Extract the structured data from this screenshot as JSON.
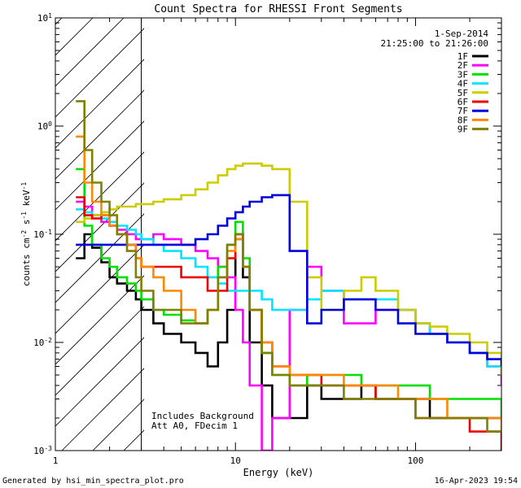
{
  "chart_data": {
    "type": "line",
    "title": "Count Spectra for RHESSI Front Segments",
    "xlabel": "Energy (keV)",
    "ylabel": "counts cm-2 s-1 keV-1",
    "x_scale": "log",
    "y_scale": "log",
    "xlim": [
      1,
      300
    ],
    "ylim": [
      0.001,
      10
    ],
    "x_ticks": [
      {
        "value": 1,
        "label": "1"
      },
      {
        "value": 10,
        "label": "10"
      },
      {
        "value": 100,
        "label": "100"
      }
    ],
    "y_ticks": [
      {
        "value": 10,
        "base": "10",
        "exp": "1"
      },
      {
        "value": 1,
        "base": "10",
        "exp": "0"
      },
      {
        "value": 0.1,
        "base": "10",
        "exp": "-1"
      },
      {
        "value": 0.01,
        "base": "10",
        "exp": "-2"
      },
      {
        "value": 0.001,
        "base": "10",
        "exp": "-3"
      }
    ],
    "date": "1-Sep-2014",
    "time_range": "21:25:00 to 21:26:00",
    "annotation_lines": [
      "Includes Background",
      "Att A0, FDecim 1"
    ],
    "hatched_region_max_kev": 3,
    "series": [
      {
        "name": "1F",
        "color": "#000000",
        "x": [
          1.3,
          1.45,
          1.6,
          1.8,
          2.0,
          2.2,
          2.5,
          2.8,
          3.0,
          3.5,
          4.0,
          5.0,
          6.0,
          7.0,
          8.0,
          9.0,
          10,
          11,
          12,
          14,
          16,
          20,
          25,
          30,
          40,
          50,
          60,
          80,
          100,
          120,
          150,
          200,
          250,
          300
        ],
        "y": [
          0.06,
          0.1,
          0.075,
          0.055,
          0.04,
          0.035,
          0.03,
          0.025,
          0.02,
          0.015,
          0.012,
          0.01,
          0.008,
          0.006,
          0.01,
          0.02,
          0.1,
          0.04,
          0.01,
          0.004,
          0.002,
          0.002,
          0.004,
          0.003,
          0.003,
          0.004,
          0.003,
          0.003,
          0.003,
          0.002,
          0.002,
          0.002,
          0.002,
          0.002
        ]
      },
      {
        "name": "2F",
        "color": "#ff00ff",
        "x": [
          1.3,
          1.45,
          1.6,
          1.8,
          2.0,
          2.2,
          2.5,
          2.8,
          3.0,
          3.5,
          4.0,
          5.0,
          6.0,
          7.0,
          8.0,
          9.0,
          10,
          11,
          12,
          14,
          16,
          20,
          25,
          30,
          40,
          50,
          60,
          80,
          100,
          120,
          150,
          200,
          250,
          300
        ],
        "y": [
          0.2,
          0.18,
          0.15,
          0.13,
          0.12,
          0.11,
          0.1,
          0.09,
          0.09,
          0.1,
          0.09,
          0.08,
          0.07,
          0.06,
          0.05,
          0.04,
          0.02,
          0.01,
          0.004,
          0.001,
          0.002,
          0.02,
          0.05,
          0.03,
          0.015,
          0.015,
          0.02,
          0.02,
          0.015,
          0.012,
          0.01,
          0.008,
          0.006,
          0.004
        ]
      },
      {
        "name": "3F",
        "color": "#00e000",
        "x": [
          1.3,
          1.45,
          1.6,
          1.8,
          2.0,
          2.2,
          2.5,
          2.8,
          3.0,
          3.5,
          4.0,
          5.0,
          6.0,
          7.0,
          8.0,
          9.0,
          10,
          11,
          12,
          14,
          16,
          20,
          25,
          30,
          40,
          50,
          60,
          80,
          100,
          120,
          150,
          200,
          250,
          300
        ],
        "y": [
          0.4,
          0.12,
          0.08,
          0.06,
          0.05,
          0.04,
          0.035,
          0.03,
          0.025,
          0.02,
          0.018,
          0.016,
          0.015,
          0.02,
          0.05,
          0.08,
          0.13,
          0.06,
          0.02,
          0.008,
          0.005,
          0.004,
          0.005,
          0.005,
          0.005,
          0.004,
          0.004,
          0.004,
          0.004,
          0.003,
          0.003,
          0.003,
          0.003,
          0.002
        ]
      },
      {
        "name": "4F",
        "color": "#00e5ff",
        "x": [
          1.3,
          1.45,
          1.6,
          1.8,
          2.0,
          2.2,
          2.5,
          2.8,
          3.0,
          3.5,
          4.0,
          5.0,
          6.0,
          7.0,
          8.0,
          9.0,
          10,
          11,
          12,
          14,
          16,
          20,
          25,
          30,
          40,
          50,
          60,
          80,
          100,
          120,
          150,
          200,
          250,
          300
        ],
        "y": [
          0.17,
          0.16,
          0.15,
          0.14,
          0.13,
          0.12,
          0.11,
          0.1,
          0.09,
          0.08,
          0.07,
          0.06,
          0.05,
          0.04,
          0.035,
          0.03,
          0.03,
          0.03,
          0.03,
          0.025,
          0.02,
          0.02,
          0.025,
          0.03,
          0.025,
          0.025,
          0.025,
          0.02,
          0.015,
          0.012,
          0.01,
          0.008,
          0.006,
          0.005
        ]
      },
      {
        "name": "5F",
        "color": "#cccc00",
        "x": [
          1.3,
          1.45,
          1.6,
          1.8,
          2.0,
          2.2,
          2.5,
          2.8,
          3.0,
          3.5,
          4.0,
          5.0,
          6.0,
          7.0,
          8.0,
          9.0,
          10,
          11,
          12,
          14,
          16,
          20,
          25,
          30,
          40,
          50,
          60,
          80,
          100,
          120,
          150,
          200,
          250,
          300
        ],
        "y": [
          0.13,
          0.14,
          0.15,
          0.16,
          0.17,
          0.18,
          0.18,
          0.19,
          0.19,
          0.2,
          0.21,
          0.23,
          0.26,
          0.3,
          0.35,
          0.4,
          0.43,
          0.45,
          0.45,
          0.43,
          0.4,
          0.2,
          0.04,
          0.02,
          0.03,
          0.04,
          0.03,
          0.02,
          0.015,
          0.014,
          0.012,
          0.01,
          0.008,
          0.005
        ]
      },
      {
        "name": "6F",
        "color": "#ee0000",
        "x": [
          1.3,
          1.45,
          1.6,
          1.8,
          2.0,
          2.2,
          2.5,
          2.8,
          3.0,
          3.5,
          4.0,
          5.0,
          6.0,
          7.0,
          8.0,
          9.0,
          10,
          11,
          12,
          14,
          16,
          20,
          25,
          30,
          40,
          50,
          60,
          80,
          100,
          120,
          150,
          200,
          250,
          300
        ],
        "y": [
          0.22,
          0.15,
          0.14,
          0.15,
          0.12,
          0.1,
          0.08,
          0.06,
          0.05,
          0.05,
          0.05,
          0.04,
          0.04,
          0.03,
          0.03,
          0.06,
          0.09,
          0.05,
          0.02,
          0.01,
          0.006,
          0.005,
          0.005,
          0.004,
          0.004,
          0.004,
          0.003,
          0.003,
          0.002,
          0.002,
          0.002,
          0.0015,
          0.0015,
          0.001
        ]
      },
      {
        "name": "7F",
        "color": "#0000dd",
        "x": [
          1.3,
          1.45,
          1.6,
          1.8,
          2.0,
          2.2,
          2.5,
          2.8,
          3.0,
          3.5,
          4.0,
          5.0,
          6.0,
          7.0,
          8.0,
          9.0,
          10,
          11,
          12,
          14,
          16,
          20,
          25,
          30,
          40,
          50,
          60,
          80,
          100,
          120,
          150,
          200,
          250,
          300
        ],
        "y": [
          0.08,
          0.08,
          0.08,
          0.08,
          0.08,
          0.08,
          0.08,
          0.08,
          0.08,
          0.08,
          0.08,
          0.08,
          0.09,
          0.1,
          0.12,
          0.14,
          0.16,
          0.18,
          0.2,
          0.22,
          0.23,
          0.07,
          0.015,
          0.02,
          0.025,
          0.025,
          0.02,
          0.015,
          0.012,
          0.012,
          0.01,
          0.008,
          0.007,
          0.006
        ]
      },
      {
        "name": "8F",
        "color": "#ff8800",
        "x": [
          1.3,
          1.45,
          1.6,
          1.8,
          2.0,
          2.2,
          2.5,
          2.8,
          3.0,
          3.5,
          4.0,
          5.0,
          6.0,
          7.0,
          8.0,
          9.0,
          10,
          11,
          12,
          14,
          16,
          20,
          25,
          30,
          40,
          50,
          60,
          80,
          100,
          120,
          150,
          200,
          250,
          300
        ],
        "y": [
          0.8,
          0.3,
          0.2,
          0.15,
          0.12,
          0.1,
          0.08,
          0.06,
          0.05,
          0.04,
          0.03,
          0.02,
          0.015,
          0.02,
          0.04,
          0.07,
          0.09,
          0.05,
          0.02,
          0.01,
          0.006,
          0.005,
          0.005,
          0.005,
          0.004,
          0.004,
          0.004,
          0.003,
          0.003,
          0.003,
          0.002,
          0.002,
          0.002,
          0.0015
        ]
      },
      {
        "name": "9F",
        "color": "#808000",
        "x": [
          1.3,
          1.45,
          1.6,
          1.8,
          2.0,
          2.2,
          2.5,
          2.8,
          3.0,
          3.5,
          4.0,
          5.0,
          6.0,
          7.0,
          8.0,
          9.0,
          10,
          11,
          12,
          14,
          16,
          20,
          25,
          30,
          40,
          50,
          60,
          80,
          100,
          120,
          150,
          200,
          250,
          300
        ],
        "y": [
          1.7,
          0.6,
          0.3,
          0.2,
          0.15,
          0.1,
          0.07,
          0.04,
          0.03,
          0.02,
          0.02,
          0.015,
          0.015,
          0.02,
          0.04,
          0.08,
          0.1,
          0.05,
          0.02,
          0.008,
          0.005,
          0.004,
          0.004,
          0.004,
          0.003,
          0.003,
          0.003,
          0.003,
          0.002,
          0.002,
          0.002,
          0.002,
          0.0015,
          0.0015
        ]
      }
    ]
  },
  "footer": {
    "generated_by": "Generated by hsi_min_spectra_plot.pro",
    "timestamp": "16-Apr-2023 19:54"
  }
}
